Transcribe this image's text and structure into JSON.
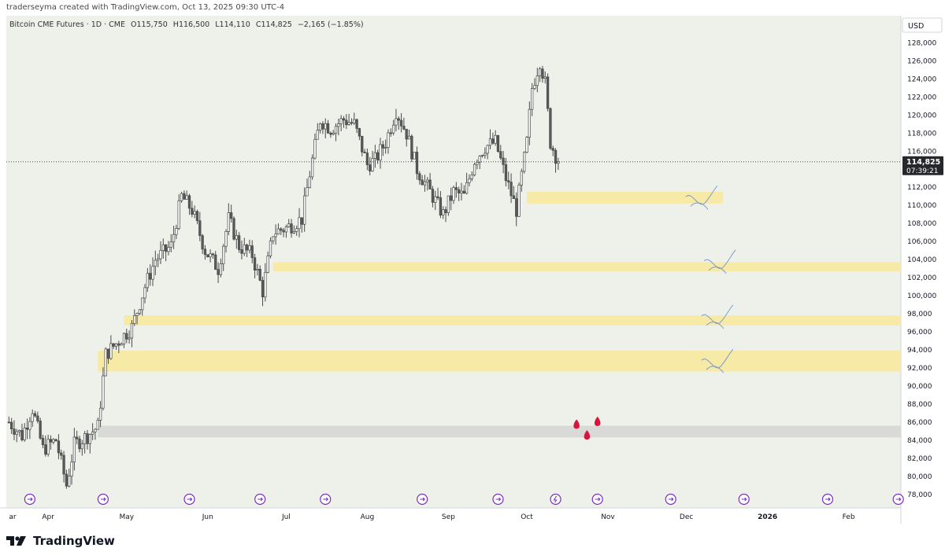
{
  "header": {
    "credit": "traderseyma created with TradingView.com, Oct 13, 2025 09:30 UTC-4"
  },
  "legend": {
    "symbol": "Bitcoin CME Futures · 1D · CME",
    "open": "O115,750",
    "high": "H116,500",
    "low": "L114,110",
    "close": "C114,825",
    "change": "−2,165 (−1.85%)"
  },
  "footer": {
    "brand": "TradingView"
  },
  "colors": {
    "background": "#eef1ea",
    "up": "#ffffff",
    "down": "#5a5a5a",
    "zone_yellow": "#f7e9a6",
    "zone_gray": "#d9dad7",
    "drop": "#d6163f",
    "event": "#7b2fbe"
  },
  "chart_data": {
    "type": "candlestick",
    "currency_label": "USD",
    "ylim": [
      76500,
      131000
    ],
    "y_ticks": [
      78000,
      80000,
      82000,
      84000,
      86000,
      88000,
      90000,
      92000,
      94000,
      96000,
      98000,
      100000,
      102000,
      104000,
      106000,
      108000,
      110000,
      112000,
      114000,
      116000,
      118000,
      120000,
      122000,
      124000,
      126000,
      128000
    ],
    "y_tick_labels": [
      "78,000",
      "80,000",
      "82,000",
      "84,000",
      "86,000",
      "88,000",
      "90,000",
      "92,000",
      "94,000",
      "96,000",
      "98,000",
      "100,000",
      "102,000",
      "104,000",
      "106,000",
      "108,000",
      "110,000",
      "112,000",
      "114,000",
      "116,000",
      "118,000",
      "120,000",
      "122,000",
      "124,000",
      "126,000",
      "128,000"
    ],
    "x_labels": [
      {
        "label": "ar",
        "date": "2025-03-17"
      },
      {
        "label": "Apr",
        "date": "2025-04-01"
      },
      {
        "label": "May",
        "date": "2025-05-01"
      },
      {
        "label": "Jun",
        "date": "2025-06-01"
      },
      {
        "label": "Jul",
        "date": "2025-07-01"
      },
      {
        "label": "Aug",
        "date": "2025-08-01"
      },
      {
        "label": "Sep",
        "date": "2025-09-01"
      },
      {
        "label": "Oct",
        "date": "2025-10-01"
      },
      {
        "label": "Nov",
        "date": "2025-11-01"
      },
      {
        "label": "Dec",
        "date": "2025-12-01"
      },
      {
        "label": "2026",
        "date": "2026-01-01"
      },
      {
        "label": "Feb",
        "date": "2026-02-01"
      }
    ],
    "x_range": [
      "2025-03-16",
      "2026-02-21"
    ],
    "last_price": {
      "value": 114825,
      "label": "114,825",
      "countdown": "07:39:21"
    },
    "price_path": [
      {
        "date": "2025-03-17",
        "close": 86000
      },
      {
        "date": "2025-03-22",
        "close": 84500
      },
      {
        "date": "2025-03-26",
        "close": 87500
      },
      {
        "date": "2025-03-30",
        "close": 83000
      },
      {
        "date": "2025-04-04",
        "close": 84000
      },
      {
        "date": "2025-04-08",
        "close": 79000
      },
      {
        "date": "2025-04-11",
        "close": 83500
      },
      {
        "date": "2025-04-16",
        "close": 84500
      },
      {
        "date": "2025-04-20",
        "close": 85500
      },
      {
        "date": "2025-04-23",
        "close": 93500
      },
      {
        "date": "2025-04-28",
        "close": 95000
      },
      {
        "date": "2025-05-03",
        "close": 96500
      },
      {
        "date": "2025-05-08",
        "close": 101000
      },
      {
        "date": "2025-05-12",
        "close": 104000
      },
      {
        "date": "2025-05-18",
        "close": 105500
      },
      {
        "date": "2025-05-22",
        "close": 111000
      },
      {
        "date": "2025-05-26",
        "close": 109500
      },
      {
        "date": "2025-05-31",
        "close": 105000
      },
      {
        "date": "2025-06-05",
        "close": 103000
      },
      {
        "date": "2025-06-09",
        "close": 108500
      },
      {
        "date": "2025-06-13",
        "close": 105500
      },
      {
        "date": "2025-06-18",
        "close": 104500
      },
      {
        "date": "2025-06-22",
        "close": 100500
      },
      {
        "date": "2025-06-26",
        "close": 107000
      },
      {
        "date": "2025-07-01",
        "close": 107500
      },
      {
        "date": "2025-07-07",
        "close": 108500
      },
      {
        "date": "2025-07-10",
        "close": 113500
      },
      {
        "date": "2025-07-14",
        "close": 119500
      },
      {
        "date": "2025-07-18",
        "close": 118500
      },
      {
        "date": "2025-07-23",
        "close": 119500
      },
      {
        "date": "2025-07-27",
        "close": 119000
      },
      {
        "date": "2025-08-01",
        "close": 114500
      },
      {
        "date": "2025-08-04",
        "close": 115000
      },
      {
        "date": "2025-08-08",
        "close": 117000
      },
      {
        "date": "2025-08-12",
        "close": 120500
      },
      {
        "date": "2025-08-16",
        "close": 118000
      },
      {
        "date": "2025-08-20",
        "close": 114000
      },
      {
        "date": "2025-08-25",
        "close": 111500
      },
      {
        "date": "2025-08-30",
        "close": 109000
      },
      {
        "date": "2025-09-03",
        "close": 111500
      },
      {
        "date": "2025-09-07",
        "close": 111000
      },
      {
        "date": "2025-09-11",
        "close": 115000
      },
      {
        "date": "2025-09-15",
        "close": 116500
      },
      {
        "date": "2025-09-19",
        "close": 117000
      },
      {
        "date": "2025-09-23",
        "close": 113000
      },
      {
        "date": "2025-09-27",
        "close": 109500
      },
      {
        "date": "2025-10-01",
        "close": 117000
      },
      {
        "date": "2025-10-03",
        "close": 123000
      },
      {
        "date": "2025-10-06",
        "close": 126000
      },
      {
        "date": "2025-10-08",
        "close": 123500
      },
      {
        "date": "2025-10-10",
        "close": 117000
      },
      {
        "date": "2025-10-13",
        "close": 114825
      }
    ],
    "zones": [
      {
        "color": "yellow",
        "from": 110200,
        "to": 111500,
        "start": "2025-10-01",
        "end": "2025-12-15"
      },
      {
        "color": "yellow",
        "from": 102700,
        "to": 103700,
        "start": "2025-06-26",
        "end": "2026-02-21"
      },
      {
        "color": "yellow",
        "from": 96700,
        "to": 97800,
        "start": "2025-04-30",
        "end": "2026-02-21"
      },
      {
        "color": "yellow",
        "from": 91600,
        "to": 93900,
        "start": "2025-04-20",
        "end": "2026-02-21"
      },
      {
        "color": "gray",
        "from": 84300,
        "to": 85600,
        "start": "2025-04-20",
        "end": "2026-02-21"
      }
    ],
    "markers": [
      {
        "date": "2025-03-25"
      },
      {
        "date": "2025-04-22"
      },
      {
        "date": "2025-05-25"
      },
      {
        "date": "2025-06-21"
      },
      {
        "date": "2025-07-16"
      },
      {
        "date": "2025-08-22"
      },
      {
        "date": "2025-09-20"
      },
      {
        "date": "2025-10-12",
        "kind": "flash"
      },
      {
        "date": "2025-10-28"
      },
      {
        "date": "2025-11-25"
      },
      {
        "date": "2025-12-23"
      },
      {
        "date": "2026-01-24"
      },
      {
        "date": "2026-02-20"
      }
    ],
    "drops": [
      {
        "date": "2025-10-20",
        "price": 85700
      },
      {
        "date": "2025-10-24",
        "price": 84500
      },
      {
        "date": "2025-10-28",
        "price": 86000
      }
    ],
    "sketches": [
      {
        "date": "2025-12-05",
        "price": 110600
      },
      {
        "date": "2025-12-12",
        "price": 103500
      },
      {
        "date": "2025-12-11",
        "price": 97400
      },
      {
        "date": "2025-12-11",
        "price": 92500
      }
    ]
  }
}
